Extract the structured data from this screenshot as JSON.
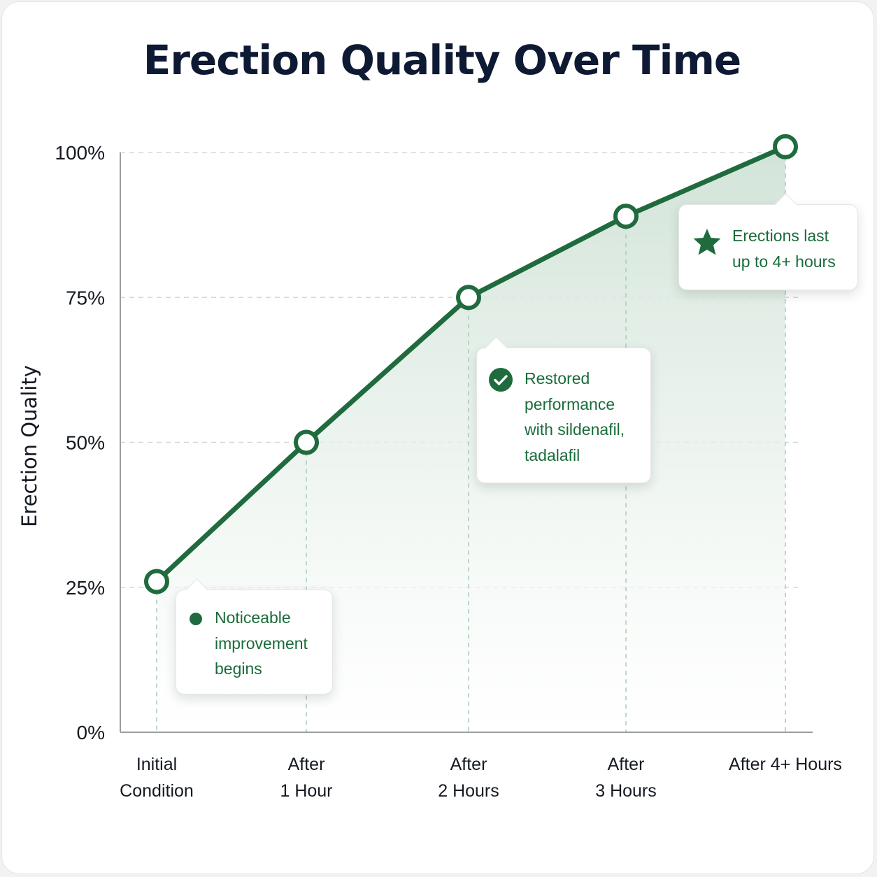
{
  "chart_data": {
    "type": "line",
    "title": "Erection Quality Over Time",
    "xlabel": "",
    "ylabel": "Erection Quality",
    "categories": [
      "Initial\nCondition",
      "After\n1 Hour",
      "After\n2 Hours",
      "After\n3 Hours",
      "After 4+ Hours"
    ],
    "values": [
      26,
      50,
      75,
      89,
      101
    ],
    "ylim": [
      0,
      100
    ],
    "yticks": [
      0,
      25,
      50,
      75,
      100
    ],
    "ytick_labels": [
      "0%",
      "25%",
      "50%",
      "75%",
      "100%"
    ],
    "grid": "horizontal dashed",
    "area_fill": true,
    "annotations": [
      {
        "icon": "dot-icon",
        "text": "Noticeable\nimprovement\nbegins"
      },
      {
        "icon": "check-circle-icon",
        "text": "Restored\nperformance\nwith sildenafil,\ntadalafil"
      },
      {
        "icon": "star-icon",
        "text": "Erections last\nup to 4+ hours"
      }
    ]
  },
  "colors": {
    "line": "#1f6b3e",
    "accent_text": "#1a6b3a",
    "area_fill": "#d6e6dc",
    "title": "#0e1a33",
    "grid": "#d5d9d6",
    "axis": "#9a9f9c"
  }
}
